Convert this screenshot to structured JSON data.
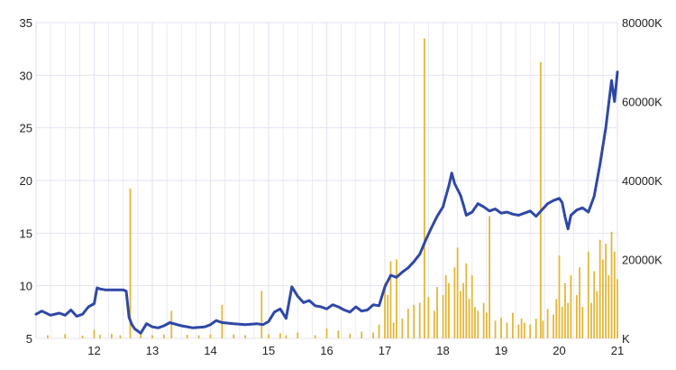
{
  "colors": {
    "background": "#ffffff",
    "grid": "#e6e3f0",
    "price_line": "#2f48a6",
    "volume_bars": "#e3b737",
    "axis_text": "#222222"
  },
  "chart_data": {
    "type": "line",
    "title": "",
    "xlabel": "",
    "ylabel": "",
    "y2label": "",
    "grid": true,
    "legend": "none",
    "x_tick_labels": [
      "12",
      "13",
      "14",
      "15",
      "16",
      "17",
      "18",
      "19",
      "20",
      "21"
    ],
    "x_ticks": [
      12,
      13,
      14,
      15,
      16,
      17,
      18,
      19,
      20,
      21
    ],
    "xlim": [
      11,
      21
    ],
    "ylim": [
      5,
      35
    ],
    "y_ticks": [
      5,
      10,
      15,
      20,
      25,
      30,
      35
    ],
    "y_tick_labels": [
      "5",
      "10",
      "15",
      "20",
      "25",
      "30",
      "35"
    ],
    "y2lim": [
      0,
      80000
    ],
    "y2_ticks": [
      0,
      20000,
      40000,
      60000,
      80000
    ],
    "y2_tick_labels": [
      "K",
      "20000K",
      "40000K",
      "60000K",
      "80000K"
    ],
    "series": [
      {
        "type": "line",
        "axis": "left",
        "values_x": [
          11.0,
          11.1,
          11.25,
          11.4,
          11.5,
          11.6,
          11.7,
          11.8,
          11.9,
          12.0,
          12.05,
          12.1,
          12.2,
          12.3,
          12.4,
          12.5,
          12.55,
          12.6,
          12.65,
          12.7,
          12.8,
          12.9,
          13.0,
          13.1,
          13.2,
          13.3,
          13.5,
          13.7,
          13.9,
          14.0,
          14.1,
          14.2,
          14.4,
          14.6,
          14.8,
          14.9,
          15.0,
          15.1,
          15.2,
          15.3,
          15.4,
          15.5,
          15.6,
          15.7,
          15.8,
          15.9,
          16.0,
          16.1,
          16.2,
          16.3,
          16.4,
          16.5,
          16.6,
          16.7,
          16.8,
          16.9,
          17.0,
          17.1,
          17.2,
          17.3,
          17.4,
          17.5,
          17.6,
          17.7,
          17.8,
          17.9,
          18.0,
          18.05,
          18.1,
          18.15,
          18.2,
          18.3,
          18.35,
          18.4,
          18.5,
          18.6,
          18.7,
          18.8,
          18.9,
          19.0,
          19.1,
          19.2,
          19.3,
          19.4,
          19.5,
          19.6,
          19.7,
          19.8,
          19.9,
          20.0,
          20.05,
          20.1,
          20.15,
          20.2,
          20.3,
          20.4,
          20.5,
          20.6,
          20.7,
          20.8,
          20.9,
          20.95,
          21.0
        ],
        "values": [
          7.3,
          7.6,
          7.2,
          7.4,
          7.2,
          7.7,
          7.1,
          7.3,
          8.0,
          8.3,
          9.8,
          9.7,
          9.6,
          9.6,
          9.6,
          9.6,
          9.5,
          7.0,
          6.3,
          5.9,
          5.5,
          6.4,
          6.1,
          6.0,
          6.2,
          6.5,
          6.2,
          6.0,
          6.1,
          6.3,
          6.7,
          6.5,
          6.4,
          6.3,
          6.4,
          6.3,
          6.6,
          7.5,
          7.8,
          6.9,
          9.9,
          9.0,
          8.4,
          8.6,
          8.1,
          8.0,
          7.8,
          8.2,
          8.0,
          7.7,
          7.5,
          8.0,
          7.6,
          7.7,
          8.2,
          8.1,
          9.9,
          11.0,
          10.8,
          11.3,
          11.7,
          12.3,
          13.0,
          14.3,
          15.5,
          16.6,
          17.5,
          18.5,
          19.5,
          20.7,
          19.7,
          18.6,
          17.7,
          16.7,
          17.0,
          17.8,
          17.5,
          17.1,
          17.3,
          16.9,
          17.0,
          16.8,
          16.7,
          16.9,
          17.1,
          16.6,
          17.2,
          17.8,
          18.1,
          18.3,
          17.9,
          16.5,
          15.4,
          16.7,
          17.2,
          17.4,
          17.0,
          18.5,
          21.5,
          25.0,
          29.5,
          27.5,
          30.3
        ]
      },
      {
        "type": "bar",
        "axis": "right",
        "name": "",
        "values_x": [
          11.2,
          11.5,
          11.8,
          12.0,
          12.1,
          12.3,
          12.45,
          12.62,
          12.8,
          13.0,
          13.2,
          13.33,
          13.6,
          13.8,
          14.0,
          14.2,
          14.4,
          14.6,
          14.88,
          15.0,
          15.2,
          15.3,
          15.5,
          15.8,
          16.0,
          16.2,
          16.4,
          16.6,
          16.8,
          16.9,
          17.0,
          17.05,
          17.1,
          17.15,
          17.2,
          17.3,
          17.4,
          17.5,
          17.6,
          17.68,
          17.75,
          17.85,
          17.9,
          18.0,
          18.05,
          18.1,
          18.2,
          18.25,
          18.3,
          18.35,
          18.4,
          18.45,
          18.5,
          18.55,
          18.6,
          18.7,
          18.75,
          18.8,
          18.9,
          19.0,
          19.1,
          19.2,
          19.3,
          19.35,
          19.4,
          19.5,
          19.6,
          19.68,
          19.72,
          19.8,
          19.9,
          19.95,
          20.0,
          20.05,
          20.1,
          20.15,
          20.2,
          20.3,
          20.35,
          20.4,
          20.5,
          20.55,
          20.6,
          20.65,
          20.7,
          20.75,
          20.8,
          20.85,
          20.9,
          20.95,
          21.0
        ],
        "values": [
          800,
          1100,
          700,
          2200,
          900,
          1200,
          800,
          38000,
          1200,
          800,
          1000,
          7000,
          900,
          800,
          1000,
          8500,
          1000,
          800,
          12000,
          1000,
          1300,
          800,
          1500,
          800,
          2500,
          2000,
          1200,
          1700,
          1500,
          3500,
          14000,
          11000,
          19500,
          4000,
          20000,
          5000,
          7500,
          8500,
          9000,
          76000,
          10500,
          7000,
          13000,
          11000,
          16000,
          14000,
          18000,
          23000,
          12000,
          14000,
          19000,
          10000,
          16000,
          8000,
          7000,
          9000,
          6500,
          31000,
          4500,
          5200,
          4000,
          6500,
          3500,
          5000,
          4000,
          3500,
          5000,
          70000,
          4500,
          7500,
          6000,
          10000,
          21000,
          8000,
          14000,
          9000,
          16000,
          11000,
          18000,
          8000,
          22000,
          9000,
          17000,
          12000,
          25000,
          20000,
          24000,
          16000,
          27000,
          22000,
          15000
        ]
      }
    ]
  }
}
